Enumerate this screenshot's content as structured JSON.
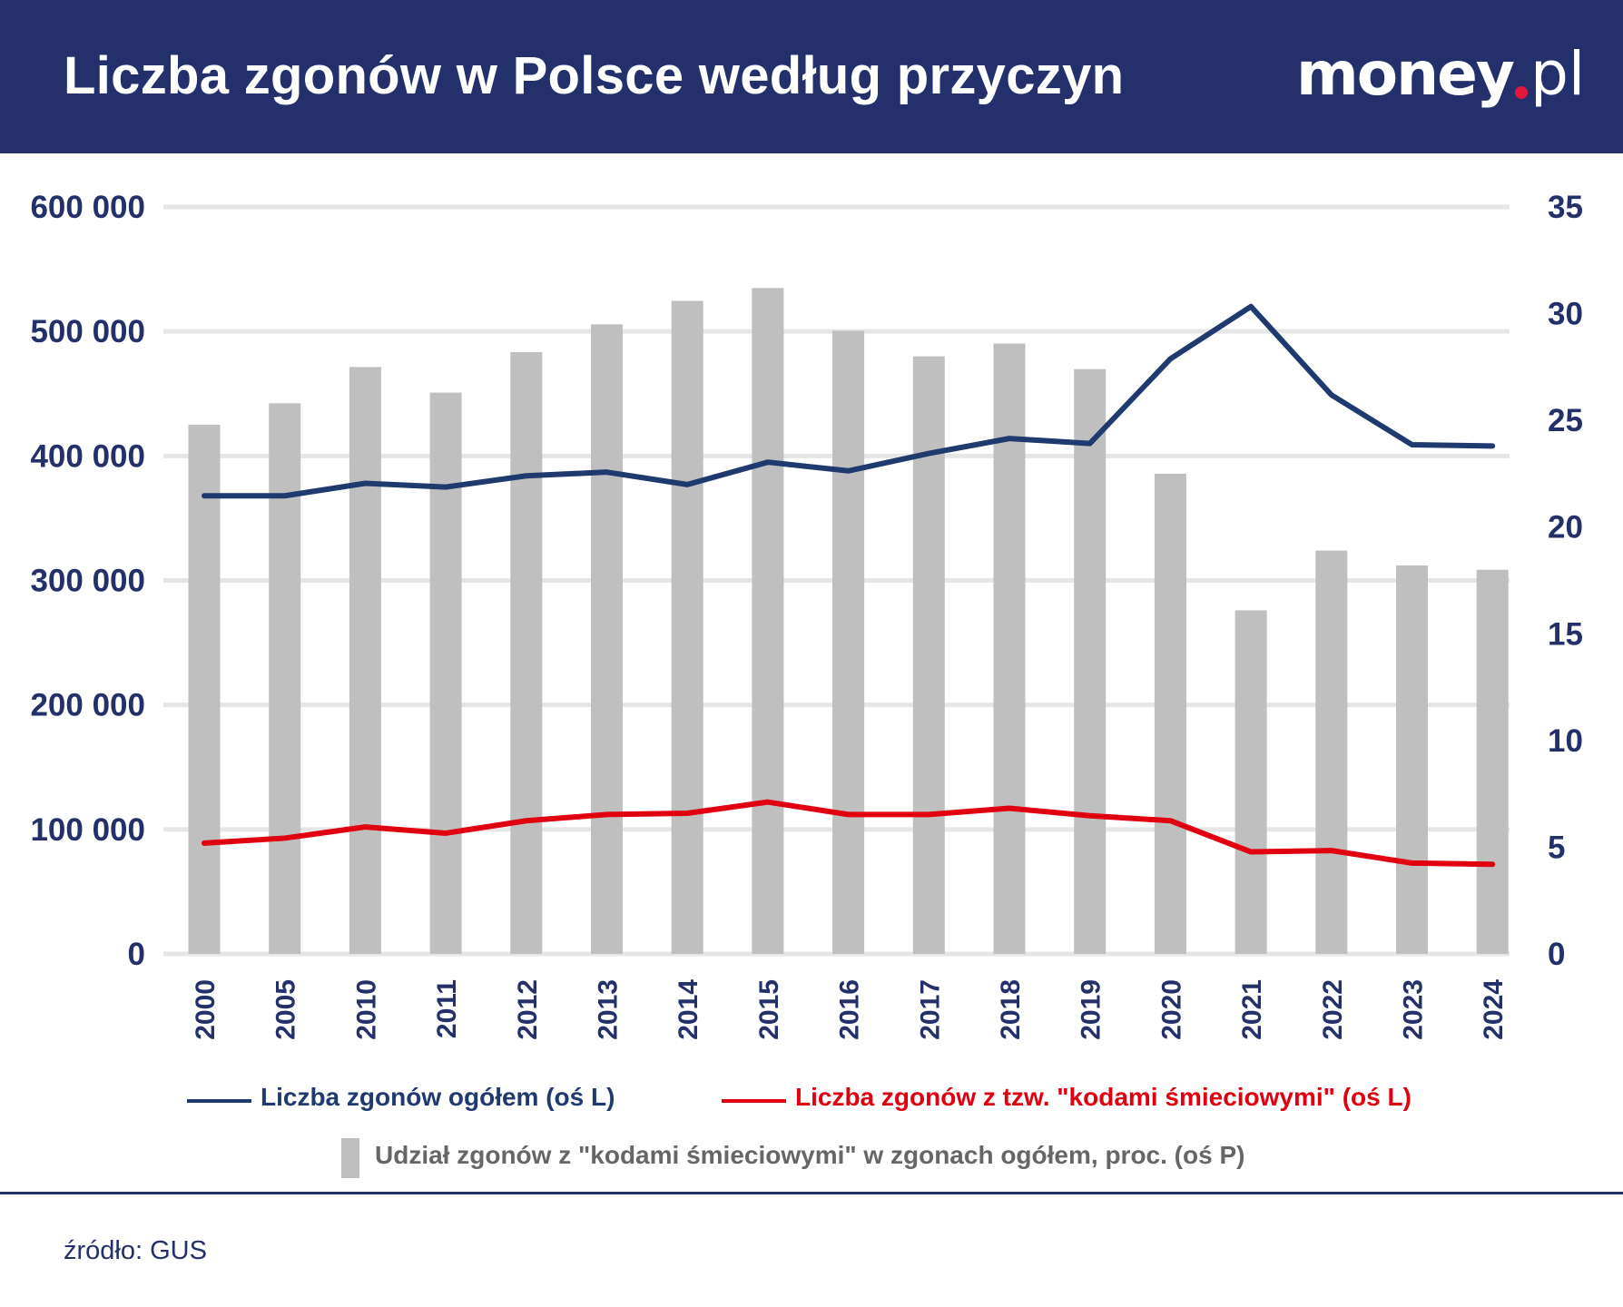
{
  "header": {
    "title": "Liczba zgonów w Polsce według przyczyn",
    "logo": "money.pl",
    "logo_dot_color": "#e3173e"
  },
  "colors": {
    "header_bg": "#24306b",
    "total_line": "#1f3a6e",
    "garbage_line": "#e0000f",
    "share_bars": "#bfbfbf",
    "grid": "#e6e6e6",
    "text": "#233069"
  },
  "chart_data": {
    "type": "bar+line",
    "title": "Liczba zgonów w Polsce według przyczyn",
    "categories": [
      "2000",
      "2005",
      "2010",
      "2011",
      "2012",
      "2013",
      "2014",
      "2015",
      "2016",
      "2017",
      "2018",
      "2019",
      "2020",
      "2021",
      "2022",
      "2023",
      "2024"
    ],
    "y_left": {
      "range": [
        0,
        600000
      ],
      "ticks": [
        0,
        100000,
        200000,
        300000,
        400000,
        500000,
        600000
      ],
      "tick_labels": [
        "0",
        "100 000",
        "200 000",
        "300 000",
        "400 000",
        "500 000",
        "600 000"
      ]
    },
    "y_right": {
      "range": [
        0,
        35
      ],
      "ticks": [
        0,
        5,
        10,
        15,
        20,
        25,
        30,
        35
      ],
      "tick_labels": [
        "0",
        "5",
        "10",
        "15",
        "20",
        "25",
        "30",
        "35"
      ]
    },
    "grid": true,
    "legend_placement": "bottom",
    "series": [
      {
        "name": "Liczba zgonów ogółem (oś L)",
        "type": "line",
        "axis": "left",
        "color": "#1f3a6e",
        "values": [
          368000,
          368000,
          378000,
          375000,
          384000,
          387000,
          377000,
          395000,
          388000,
          402000,
          414000,
          410000,
          478000,
          520000,
          449000,
          409000,
          408000
        ]
      },
      {
        "name": "Liczba zgonów z tzw. \"kodami śmieciowymi\" (oś L)",
        "type": "line",
        "axis": "left",
        "color": "#e0000f",
        "values": [
          89000,
          93000,
          102000,
          97000,
          107000,
          112000,
          113000,
          122000,
          112000,
          112000,
          117000,
          111000,
          107000,
          82000,
          83000,
          73000,
          72000
        ]
      },
      {
        "name": "Udział zgonów z \"kodami śmieciowymi\" w zgonach ogółem, proc. (oś P)",
        "type": "bar",
        "axis": "right",
        "color": "#bfbfbf",
        "values": [
          24.8,
          25.8,
          27.5,
          26.3,
          28.2,
          29.5,
          30.6,
          31.2,
          29.2,
          28.0,
          28.6,
          27.4,
          22.5,
          16.1,
          18.9,
          18.2,
          18.0
        ]
      }
    ]
  },
  "footer": {
    "source": "źródło: GUS"
  }
}
